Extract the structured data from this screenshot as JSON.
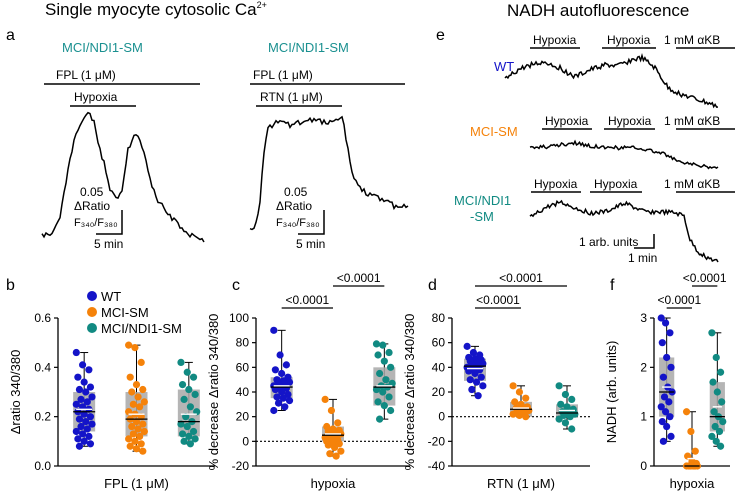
{
  "headers": {
    "left": "Single myocyte cytosolic Ca",
    "left_sup": "2+",
    "right": "NADH autofluorescence"
  },
  "colors": {
    "wt": "#1414c8",
    "mci": "#f5820a",
    "ndi": "#118a82",
    "box": "#a8a8a8",
    "title_teal": "#1a9090"
  },
  "panel_a": {
    "letter": "a",
    "left": {
      "title": "MCI/NDI1-SM",
      "bar1": "FPL (1 μM)",
      "bar2": "Hypoxia",
      "scale_value": "0.05",
      "scale_label": "ΔRatio",
      "scale_ratio": "F₃₄₀/F₃₈₀",
      "scale_time": "5 min"
    },
    "right": {
      "title": "MCI/NDI1-SM",
      "bar1": "FPL (1 μM)",
      "bar2": "RTN (1 μM)",
      "scale_value": "0.05",
      "scale_label": "ΔRatio",
      "scale_ratio": "F₃₄₀/F₃₈₀",
      "scale_time": "5 min"
    }
  },
  "panel_e": {
    "letter": "e",
    "rows": [
      {
        "label": "WT",
        "hyp1": "Hypoxia",
        "hyp2": "Hypoxia",
        "akb": "1 mM αKB"
      },
      {
        "label": "MCI-SM",
        "hyp1": "Hypoxia",
        "hyp2": "Hypoxia",
        "akb": "1 mM αKB"
      },
      {
        "label": "MCI/NDI1",
        "label2": "-SM",
        "hyp1": "Hypoxia",
        "hyp2": "Hypoxia",
        "akb": "1 mM αKB"
      }
    ],
    "scale_units": "1 arb. units",
    "scale_time": "1 min"
  },
  "legend": {
    "items": [
      {
        "label": "WT",
        "color": "#1414c8"
      },
      {
        "label": "MCI-SM",
        "color": "#f5820a"
      },
      {
        "label": "MCI/NDI1-SM",
        "color": "#118a82"
      }
    ]
  },
  "chart_data": [
    {
      "panel": "b",
      "type": "box",
      "categories": [
        "WT",
        "MCI-SM",
        "MCI/NDI1-SM"
      ],
      "ylabel": "Δratio 340/380",
      "xlabel": "FPL (1 μM)",
      "ylim": [
        0,
        0.6
      ],
      "yticks": [
        "0.0",
        "0.2",
        "0.4",
        "0.6"
      ],
      "boxes": [
        {
          "min": 0.08,
          "q1": 0.14,
          "median": 0.22,
          "q3": 0.3,
          "max": 0.46,
          "mean": 0.23
        },
        {
          "min": 0.06,
          "q1": 0.12,
          "median": 0.19,
          "q3": 0.3,
          "max": 0.49,
          "mean": 0.21
        },
        {
          "min": 0.09,
          "q1": 0.12,
          "median": 0.18,
          "q3": 0.31,
          "max": 0.42,
          "mean": 0.21
        }
      ],
      "points": [
        [
          0.46,
          0.41,
          0.39,
          0.36,
          0.34,
          0.32,
          0.31,
          0.3,
          0.28,
          0.27,
          0.26,
          0.25,
          0.24,
          0.23,
          0.22,
          0.21,
          0.2,
          0.19,
          0.18,
          0.17,
          0.16,
          0.15,
          0.14,
          0.13,
          0.12,
          0.11,
          0.1,
          0.09,
          0.08
        ],
        [
          0.49,
          0.48,
          0.42,
          0.36,
          0.33,
          0.31,
          0.3,
          0.28,
          0.26,
          0.25,
          0.24,
          0.22,
          0.21,
          0.2,
          0.19,
          0.18,
          0.17,
          0.16,
          0.15,
          0.14,
          0.13,
          0.12,
          0.11,
          0.1,
          0.09,
          0.08,
          0.07,
          0.06
        ],
        [
          0.42,
          0.38,
          0.36,
          0.33,
          0.31,
          0.29,
          0.27,
          0.24,
          0.22,
          0.2,
          0.18,
          0.17,
          0.16,
          0.14,
          0.13,
          0.12,
          0.11,
          0.1,
          0.09
        ]
      ],
      "comparisons": []
    },
    {
      "panel": "c",
      "type": "box",
      "categories": [
        "WT",
        "MCI-SM",
        "MCI/NDI1-SM"
      ],
      "ylabel": "% decrease Δratio 340/380",
      "xlabel": "hypoxia",
      "ylim": [
        -20,
        100
      ],
      "yticks": [
        "-20",
        "0",
        "20",
        "40",
        "60",
        "80",
        "100"
      ],
      "zero_line": true,
      "boxes": [
        {
          "min": 25,
          "q1": 35,
          "median": 44,
          "q3": 52,
          "max": 90,
          "mean": 45
        },
        {
          "min": -12,
          "q1": 0,
          "median": 5,
          "q3": 12,
          "max": 34,
          "mean": 6
        },
        {
          "min": 18,
          "q1": 29,
          "median": 44,
          "q3": 60,
          "max": 79,
          "mean": 45
        }
      ],
      "points": [
        [
          90,
          70,
          62,
          58,
          55,
          52,
          50,
          49,
          48,
          47,
          46,
          45,
          44,
          43,
          42,
          40,
          38,
          36,
          35,
          33,
          31,
          28,
          25
        ],
        [
          34,
          25,
          15,
          12,
          10,
          9,
          8,
          7,
          6,
          5,
          4,
          3,
          2,
          1,
          0,
          -1,
          -2,
          -3,
          -5,
          -8,
          -10,
          -12
        ],
        [
          79,
          78,
          72,
          70,
          65,
          60,
          55,
          50,
          47,
          45,
          44,
          42,
          40,
          36,
          32,
          29,
          25,
          18
        ]
      ],
      "comparisons": [
        {
          "from": 0,
          "to": 1,
          "label": "<0.0001"
        },
        {
          "from": 1,
          "to": 2,
          "label": "<0.0001"
        }
      ]
    },
    {
      "panel": "d",
      "type": "box",
      "categories": [
        "WT",
        "MCI-SM",
        "MCI/NDI1-SM"
      ],
      "ylabel": "% decrease Δratio 340/380",
      "xlabel": "RTN (1 μM)",
      "ylim": [
        -40,
        80
      ],
      "yticks": [
        "-40",
        "-20",
        "0",
        "20",
        "40",
        "60",
        "80"
      ],
      "zero_line": true,
      "boxes": [
        {
          "min": 17,
          "q1": 29,
          "median": 41,
          "q3": 47,
          "max": 57,
          "mean": 39
        },
        {
          "min": 0,
          "q1": 0,
          "median": 6,
          "q3": 12,
          "max": 25,
          "mean": 7
        },
        {
          "min": -10,
          "q1": 0,
          "median": 3,
          "q3": 10,
          "max": 25,
          "mean": 5
        }
      ],
      "points": [
        [
          57,
          52,
          50,
          48,
          47,
          46,
          45,
          44,
          43,
          42,
          41,
          40,
          39,
          38,
          37,
          35,
          32,
          30,
          28,
          25,
          22,
          17
        ],
        [
          25,
          20,
          15,
          12,
          10,
          8,
          7,
          6,
          5,
          4,
          3,
          2,
          1,
          0
        ],
        [
          25,
          18,
          14,
          10,
          8,
          6,
          4,
          3,
          2,
          1,
          0,
          -2,
          -5,
          -10
        ]
      ],
      "comparisons": [
        {
          "from": 0,
          "to": 1,
          "label": "<0.0001"
        },
        {
          "from": 0,
          "to": 2,
          "label": "<0.0001"
        }
      ]
    },
    {
      "panel": "f",
      "type": "box",
      "categories": [
        "WT",
        "MCI-SM",
        "MCI/NDI1-SM"
      ],
      "ylabel": "NADH (arb. units)",
      "xlabel": "hypoxia",
      "ylim": [
        0,
        3
      ],
      "yticks": [
        "0",
        "1",
        "2",
        "3"
      ],
      "boxes": [
        {
          "min": 0.5,
          "q1": 1.0,
          "median": 1.5,
          "q3": 2.2,
          "max": 3.0,
          "mean": 1.6
        },
        {
          "min": 0.0,
          "q1": 0.0,
          "median": 0.0,
          "q3": 0.05,
          "max": 1.1,
          "mean": 0.15
        },
        {
          "min": 0.4,
          "q1": 0.7,
          "median": 1.0,
          "q3": 1.7,
          "max": 2.7,
          "mean": 1.2
        }
      ],
      "points": [
        [
          3.0,
          2.9,
          2.7,
          2.5,
          2.2,
          2.0,
          1.8,
          1.6,
          1.5,
          1.4,
          1.3,
          1.2,
          1.1,
          1.0,
          0.9,
          0.8,
          0.6,
          0.5
        ],
        [
          1.1,
          0.7,
          0.3,
          0.2,
          0.1,
          0.05,
          0.0,
          0.0,
          0.0,
          0.0,
          0.0,
          0.0,
          0.0,
          0.0
        ],
        [
          2.7,
          2.2,
          1.9,
          1.7,
          1.5,
          1.3,
          1.1,
          1.0,
          0.9,
          0.8,
          0.7,
          0.6,
          0.5,
          0.4
        ]
      ],
      "comparisons": [
        {
          "from": 0,
          "to": 1,
          "label": "<0.0001"
        },
        {
          "from": 1,
          "to": 2,
          "label": "<0.0001"
        }
      ]
    }
  ]
}
